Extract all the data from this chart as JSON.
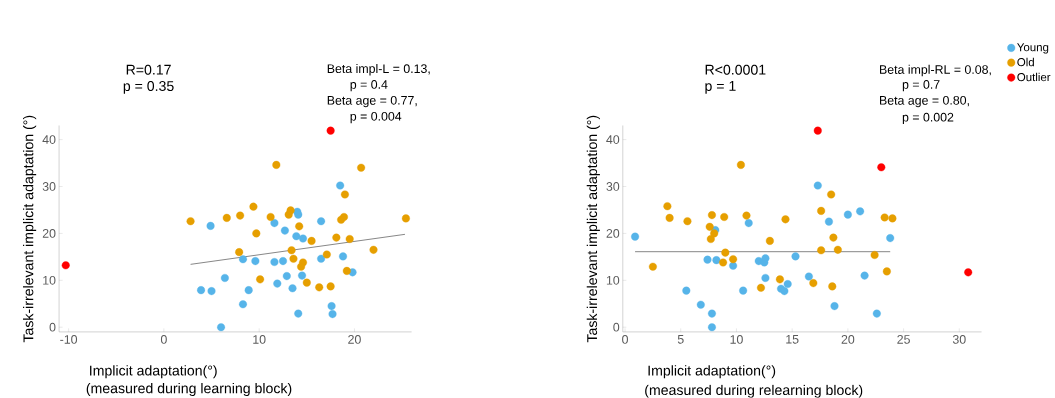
{
  "chart_data": [
    {
      "type": "scatter",
      "xlabel": "Implicit adaptation(°)",
      "ylabel": "Task-irrelevant implicit adaptation (°)",
      "marker": "circle",
      "annotations": [
        "R=0.17",
        "p = 0.35",
        "Beta impl-L = 0.13,",
        "p = 0.4",
        "Beta age = 0.77,",
        "p = 0.004",
        "(measured during learning block)"
      ],
      "xlim": [
        -11,
        26
      ],
      "ylim": [
        -1,
        43
      ],
      "xticks": [
        -10,
        0,
        10,
        20
      ],
      "yticks": [
        0,
        10,
        20,
        30,
        40
      ],
      "series": [
        {
          "color": "#56b4e9",
          "x": [
            4.9,
            3.9,
            5.0,
            6.4,
            6.0,
            8.3,
            8.3,
            8.9,
            9.6,
            11.6,
            11.6,
            12.5,
            11.9,
            12.7,
            12.9,
            13.5,
            14.0,
            14.1,
            13.9,
            14.6,
            14.5,
            14.1,
            16.5,
            16.5,
            18.5,
            18.8,
            19.8,
            17.6,
            17.7
          ],
          "values": [
            21.6,
            7.9,
            7.7,
            10.5,
            0,
            14.5,
            4.9,
            7.9,
            14.1,
            22.2,
            13.9,
            14.1,
            9.3,
            20.6,
            10.9,
            8.3,
            24.6,
            24.0,
            19.4,
            18.9,
            11.0,
            2.9,
            22.6,
            14.6,
            30.2,
            15.1,
            11.7,
            4.5,
            2.8
          ]
        },
        {
          "color": "#e69f00",
          "x": [
            2.8,
            6.6,
            8.0,
            7.9,
            9.4,
            9.7,
            10.1,
            11.8,
            11.2,
            13.1,
            13.3,
            14.2,
            13.4,
            13.6,
            14.6,
            14.4,
            15.0,
            15.5,
            16.3,
            17.1,
            17.5,
            18.1,
            18.6,
            18.9,
            19.0,
            19.5,
            19.2,
            20.7,
            22.0,
            25.4
          ],
          "values": [
            22.6,
            23.3,
            23.8,
            16.0,
            25.7,
            20.0,
            10.2,
            34.6,
            23.5,
            24.0,
            24.9,
            21.5,
            16.4,
            14.6,
            13.8,
            12.9,
            9.5,
            18.4,
            8.5,
            15.5,
            8.7,
            19.1,
            22.9,
            23.5,
            28.3,
            18.8,
            12.0,
            34.0,
            16.5,
            23.2
          ]
        },
        {
          "color": "#ff0000",
          "x": [
            17.5,
            -10.3
          ],
          "values": [
            41.9,
            13.2
          ]
        },
        {
          "type": "line",
          "marker": "none",
          "color": "#555555",
          "x": [
            2.8,
            25.3
          ],
          "values": [
            13.4,
            19.8
          ]
        }
      ]
    },
    {
      "type": "scatter",
      "xlabel": "Implicit adaptation(°)",
      "ylabel": "Task-irrelevant implicit adaptation (°)",
      "marker": "circle",
      "legend": "top right",
      "annotations": [
        "R<0.0001",
        "p = 1",
        "Beta impl-RL = 0.08,",
        "p = 0.7",
        "Beta age = 0.80,",
        "p = 0.002",
        "(measured during relearning block)"
      ],
      "xlim": [
        -0.2,
        32
      ],
      "ylim": [
        -1,
        43
      ],
      "xticks": [
        0,
        5,
        10,
        15,
        20,
        25,
        30
      ],
      "yticks": [
        0,
        10,
        20,
        30,
        40
      ],
      "series": [
        {
          "name": "Young",
          "color": "#56b4e9",
          "x": [
            0.9,
            5.5,
            6.8,
            7.4,
            7.8,
            7.8,
            8.2,
            8.1,
            9.7,
            10.6,
            11.1,
            12.0,
            12.5,
            12.6,
            12.6,
            14.0,
            14.3,
            14.6,
            15.3,
            16.5,
            17.3,
            18.3,
            18.8,
            20.0,
            21.1,
            21.5,
            22.6,
            23.8
          ],
          "values": [
            19.3,
            7.8,
            4.8,
            14.4,
            2.9,
            0,
            14.3,
            20.7,
            13.1,
            7.8,
            22.2,
            14.1,
            13.8,
            14.7,
            10.5,
            8.2,
            7.7,
            9.2,
            15.1,
            10.8,
            30.2,
            22.5,
            4.5,
            24.0,
            24.7,
            11.0,
            2.9,
            19.0
          ]
        },
        {
          "name": "Old",
          "color": "#e69f00",
          "x": [
            2.5,
            3.8,
            4.0,
            5.6,
            7.6,
            7.8,
            8.0,
            7.7,
            8.9,
            9.0,
            8.8,
            9.7,
            10.4,
            10.9,
            12.2,
            13.0,
            13.9,
            14.4,
            16.9,
            17.6,
            17.6,
            18.5,
            18.7,
            18.6,
            19.1,
            22.4,
            23.3,
            24.0,
            23.5
          ],
          "values": [
            12.9,
            25.8,
            23.3,
            22.6,
            21.4,
            23.9,
            20.0,
            18.8,
            23.5,
            15.9,
            13.8,
            14.5,
            34.6,
            23.8,
            8.4,
            18.4,
            10.2,
            23.0,
            9.4,
            24.8,
            16.4,
            28.3,
            19.1,
            8.7,
            16.5,
            15.4,
            23.4,
            23.2,
            11.9
          ]
        },
        {
          "name": "Outlier",
          "color": "#ff0000",
          "x": [
            17.3,
            23.0,
            30.8
          ],
          "values": [
            41.9,
            34.1,
            11.7
          ]
        },
        {
          "type": "line",
          "marker": "none",
          "color": "#555555",
          "x": [
            0.9,
            23.8
          ],
          "values": [
            16.1,
            16.1
          ]
        }
      ]
    }
  ]
}
